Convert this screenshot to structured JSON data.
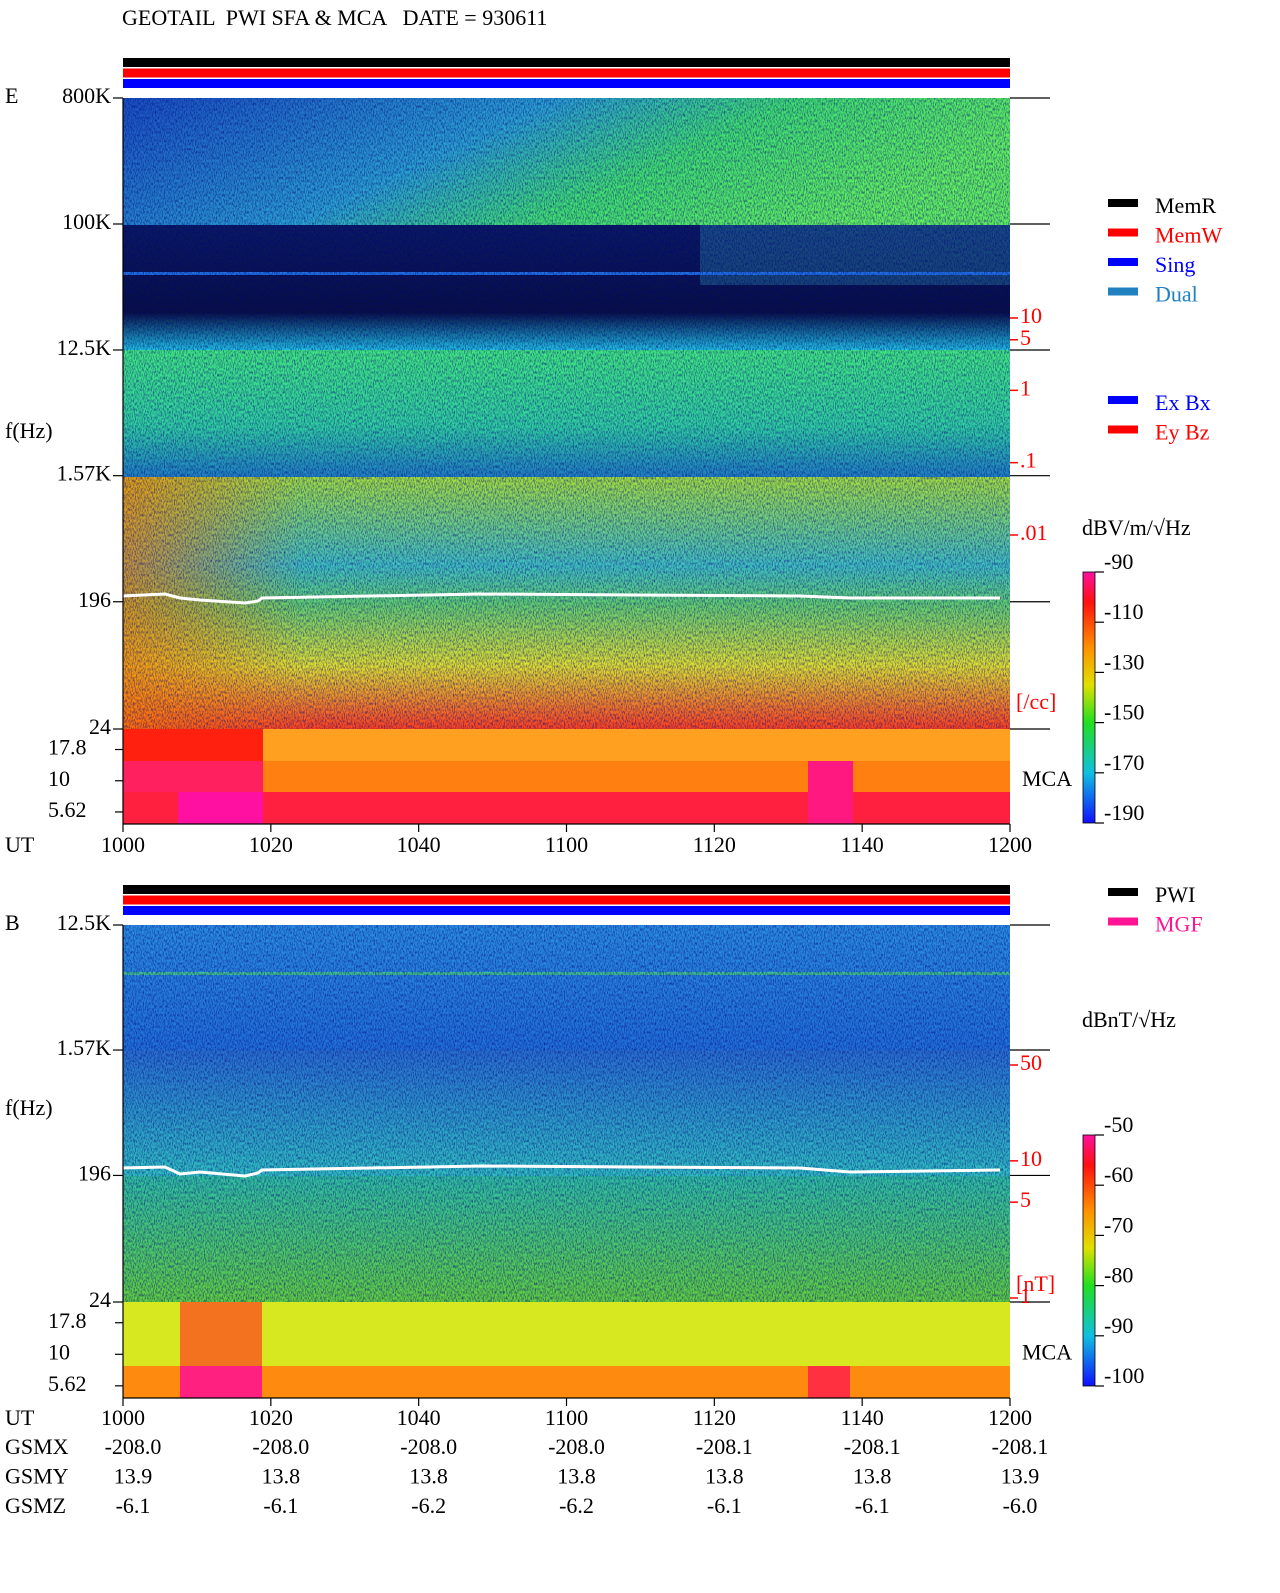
{
  "title": "GEOTAIL  PWI SFA & MCA   DATE = 930611",
  "chart_data": [
    {
      "type": "spectrogram",
      "panel_label": "E",
      "ylabel": "f(Hz)",
      "xlabel": "UT",
      "categories": [
        "1000",
        "1020",
        "1040",
        "1100",
        "1120",
        "1140",
        "1200"
      ],
      "yscale": "log",
      "ylim": [
        24,
        800000
      ],
      "yticks": [
        {
          "value": 800000,
          "label": "800K"
        },
        {
          "value": 100000,
          "label": "100K"
        },
        {
          "value": 12500,
          "label": "12.5K"
        },
        {
          "value": 1570,
          "label": "1.57K"
        },
        196,
        24
      ],
      "mca_label": "MCA",
      "mca_ylim": [
        4.5,
        26
      ],
      "mca_ticks": [
        17.8,
        10,
        5.62
      ],
      "y2scale": "log",
      "y2lim": [
        0.01,
        10
      ],
      "y2color": "#ff0000",
      "y2label": "[/cc]",
      "y2ticks": [
        10,
        5,
        1,
        {
          "value": 0.1,
          "label": ".1"
        },
        {
          "value": 0.01,
          "label": ".01"
        }
      ],
      "colorbar": {
        "label": "dBV/m/√Hz",
        "clim": [
          -190,
          -90
        ],
        "ticks": [
          -90,
          -110,
          -130,
          -150,
          -170,
          -190
        ]
      },
      "status_bars": [
        "#000000",
        "#ff0000",
        "#0000ff"
      ],
      "legend": [
        {
          "name": "MemR",
          "color": "#000000"
        },
        {
          "name": "MemW",
          "color": "#ff0000"
        },
        {
          "name": "Sing",
          "color": "#0000ff"
        },
        {
          "name": "Dual",
          "color": "#2080c0"
        }
      ],
      "legend2": [
        {
          "name": "Ex Bx",
          "color": "#0000ff"
        },
        {
          "name": "Ey Bz",
          "color": "#ff0000"
        }
      ]
    },
    {
      "type": "spectrogram",
      "panel_label": "B",
      "ylabel": "f(Hz)",
      "xlabel": "UT",
      "categories": [
        "1000",
        "1020",
        "1040",
        "1100",
        "1120",
        "1140",
        "1200"
      ],
      "yscale": "log",
      "ylim": [
        24,
        12500
      ],
      "yticks": [
        {
          "value": 12500,
          "label": "12.5K"
        },
        {
          "value": 1570,
          "label": "1.57K"
        },
        196,
        24
      ],
      "mca_label": "MCA",
      "mca_ylim": [
        4.5,
        26
      ],
      "mca_ticks": [
        17.8,
        10,
        5.62
      ],
      "y2scale": "log",
      "y2lim": [
        1,
        50
      ],
      "y2color": "#ff0000",
      "y2label": "[nT]",
      "y2ticks": [
        50,
        10,
        5,
        1
      ],
      "colorbar": {
        "label": "dBnT/√Hz",
        "clim": [
          -100,
          -50
        ],
        "ticks": [
          -50,
          -60,
          -70,
          -80,
          -90,
          -100
        ]
      },
      "status_bars": [
        "#000000",
        "#ff0000",
        "#0000ff"
      ],
      "legend": [
        {
          "name": "PWI",
          "color": "#000000"
        },
        {
          "name": "MGF",
          "color": "#ff1493"
        }
      ]
    }
  ],
  "position_table": {
    "rows": [
      {
        "name": "GSMX",
        "values": [
          "-208.0",
          "-208.0",
          "-208.0",
          "-208.0",
          "-208.1",
          "-208.1",
          "-208.1"
        ]
      },
      {
        "name": "GSMY",
        "values": [
          "13.9",
          "13.8",
          "13.8",
          "13.8",
          "13.8",
          "13.8",
          "13.9"
        ]
      },
      {
        "name": "GSMZ",
        "values": [
          "-6.1",
          "-6.1",
          "-6.2",
          "-6.2",
          "-6.1",
          "-6.1",
          "-6.0"
        ]
      }
    ]
  }
}
